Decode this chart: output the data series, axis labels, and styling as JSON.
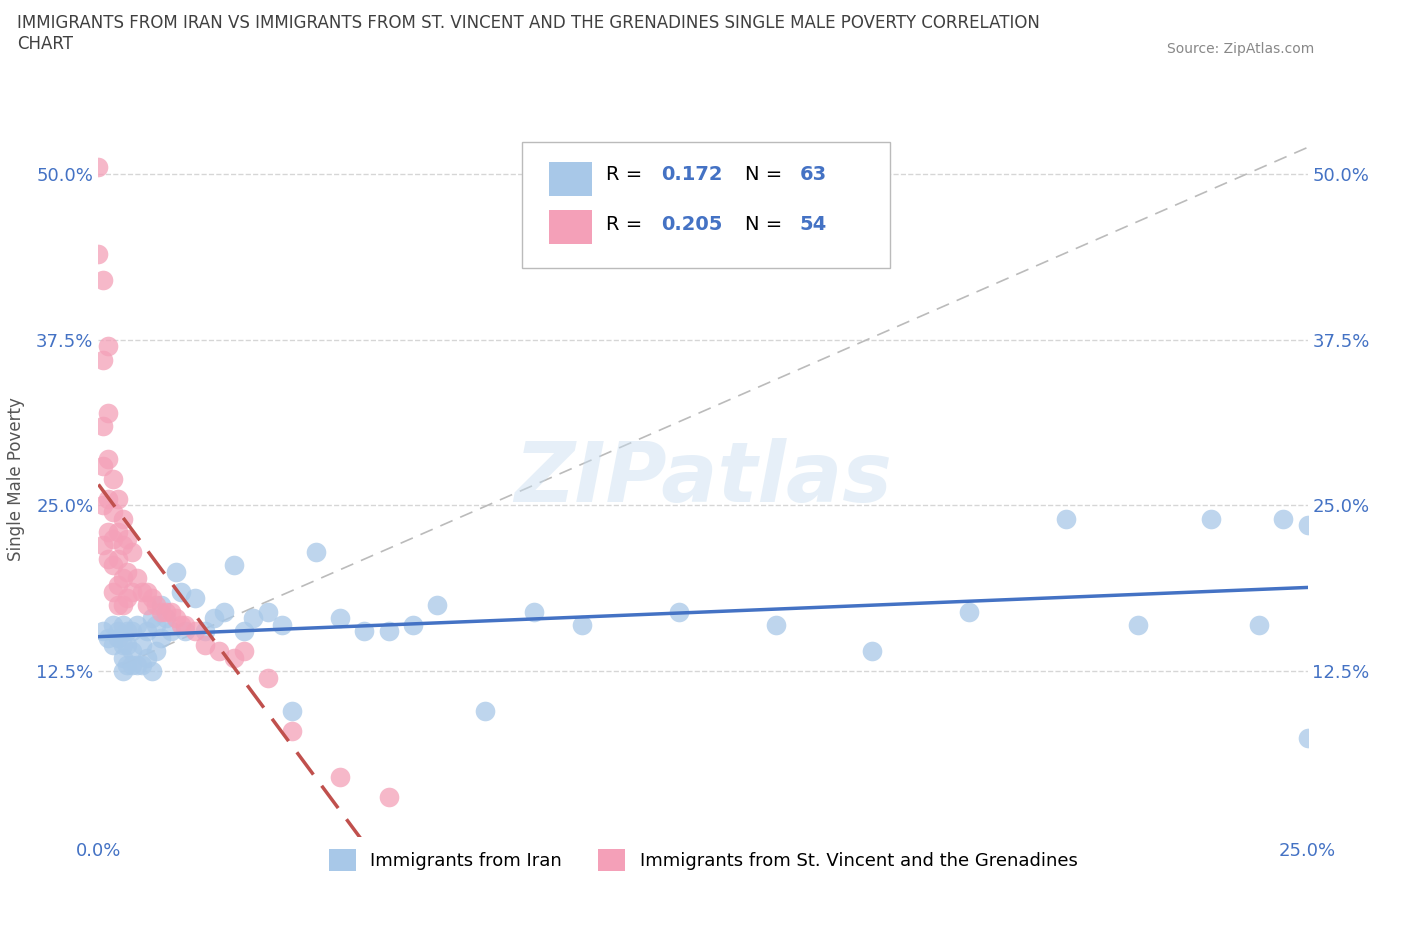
{
  "title": "IMMIGRANTS FROM IRAN VS IMMIGRANTS FROM ST. VINCENT AND THE GRENADINES SINGLE MALE POVERTY CORRELATION\nCHART",
  "source": "Source: ZipAtlas.com",
  "xlabel_blue": "Immigrants from Iran",
  "xlabel_pink": "Immigrants from St. Vincent and the Grenadines",
  "ylabel": "Single Male Poverty",
  "watermark": "ZIPatlas",
  "R_blue": 0.172,
  "N_blue": 63,
  "R_pink": 0.205,
  "N_pink": 54,
  "color_blue": "#a8c8e8",
  "color_pink": "#f4a0b8",
  "trendline_blue": "#4472c4",
  "trendline_pink": "#c0504d",
  "xmin": 0.0,
  "xmax": 0.25,
  "ymin": 0.0,
  "ymax": 0.54,
  "bg_color": "#ffffff",
  "grid_color": "#cccccc",
  "title_color": "#404040",
  "axis_label_color": "#4472c4",
  "blue_x": [
    0.001,
    0.002,
    0.003,
    0.003,
    0.004,
    0.004,
    0.005,
    0.005,
    0.005,
    0.005,
    0.006,
    0.006,
    0.006,
    0.007,
    0.007,
    0.007,
    0.008,
    0.008,
    0.009,
    0.009,
    0.01,
    0.01,
    0.011,
    0.011,
    0.012,
    0.012,
    0.013,
    0.013,
    0.014,
    0.015,
    0.016,
    0.017,
    0.018,
    0.02,
    0.022,
    0.024,
    0.026,
    0.028,
    0.03,
    0.032,
    0.035,
    0.038,
    0.04,
    0.045,
    0.05,
    0.055,
    0.06,
    0.065,
    0.07,
    0.08,
    0.09,
    0.1,
    0.12,
    0.14,
    0.16,
    0.18,
    0.2,
    0.215,
    0.23,
    0.24,
    0.245,
    0.25,
    0.25
  ],
  "blue_y": [
    0.155,
    0.15,
    0.145,
    0.16,
    0.15,
    0.155,
    0.16,
    0.145,
    0.135,
    0.125,
    0.155,
    0.145,
    0.13,
    0.155,
    0.14,
    0.13,
    0.16,
    0.13,
    0.145,
    0.13,
    0.155,
    0.135,
    0.165,
    0.125,
    0.16,
    0.14,
    0.175,
    0.15,
    0.165,
    0.155,
    0.2,
    0.185,
    0.155,
    0.18,
    0.155,
    0.165,
    0.17,
    0.205,
    0.155,
    0.165,
    0.17,
    0.16,
    0.095,
    0.215,
    0.165,
    0.155,
    0.155,
    0.16,
    0.175,
    0.095,
    0.17,
    0.16,
    0.17,
    0.16,
    0.14,
    0.17,
    0.24,
    0.16,
    0.24,
    0.16,
    0.24,
    0.235,
    0.075
  ],
  "pink_x": [
    0.0,
    0.0,
    0.001,
    0.001,
    0.001,
    0.001,
    0.001,
    0.001,
    0.002,
    0.002,
    0.002,
    0.002,
    0.002,
    0.002,
    0.003,
    0.003,
    0.003,
    0.003,
    0.003,
    0.004,
    0.004,
    0.004,
    0.004,
    0.004,
    0.005,
    0.005,
    0.005,
    0.005,
    0.006,
    0.006,
    0.006,
    0.007,
    0.007,
    0.008,
    0.009,
    0.01,
    0.01,
    0.011,
    0.012,
    0.013,
    0.014,
    0.015,
    0.016,
    0.017,
    0.018,
    0.02,
    0.022,
    0.025,
    0.028,
    0.03,
    0.035,
    0.04,
    0.05,
    0.06
  ],
  "pink_y": [
    0.505,
    0.44,
    0.42,
    0.36,
    0.31,
    0.28,
    0.25,
    0.22,
    0.37,
    0.32,
    0.285,
    0.255,
    0.23,
    0.21,
    0.27,
    0.245,
    0.225,
    0.205,
    0.185,
    0.255,
    0.23,
    0.21,
    0.19,
    0.175,
    0.24,
    0.22,
    0.195,
    0.175,
    0.225,
    0.2,
    0.18,
    0.215,
    0.185,
    0.195,
    0.185,
    0.185,
    0.175,
    0.18,
    0.175,
    0.17,
    0.17,
    0.17,
    0.165,
    0.16,
    0.16,
    0.155,
    0.145,
    0.14,
    0.135,
    0.14,
    0.12,
    0.08,
    0.045,
    0.03
  ]
}
